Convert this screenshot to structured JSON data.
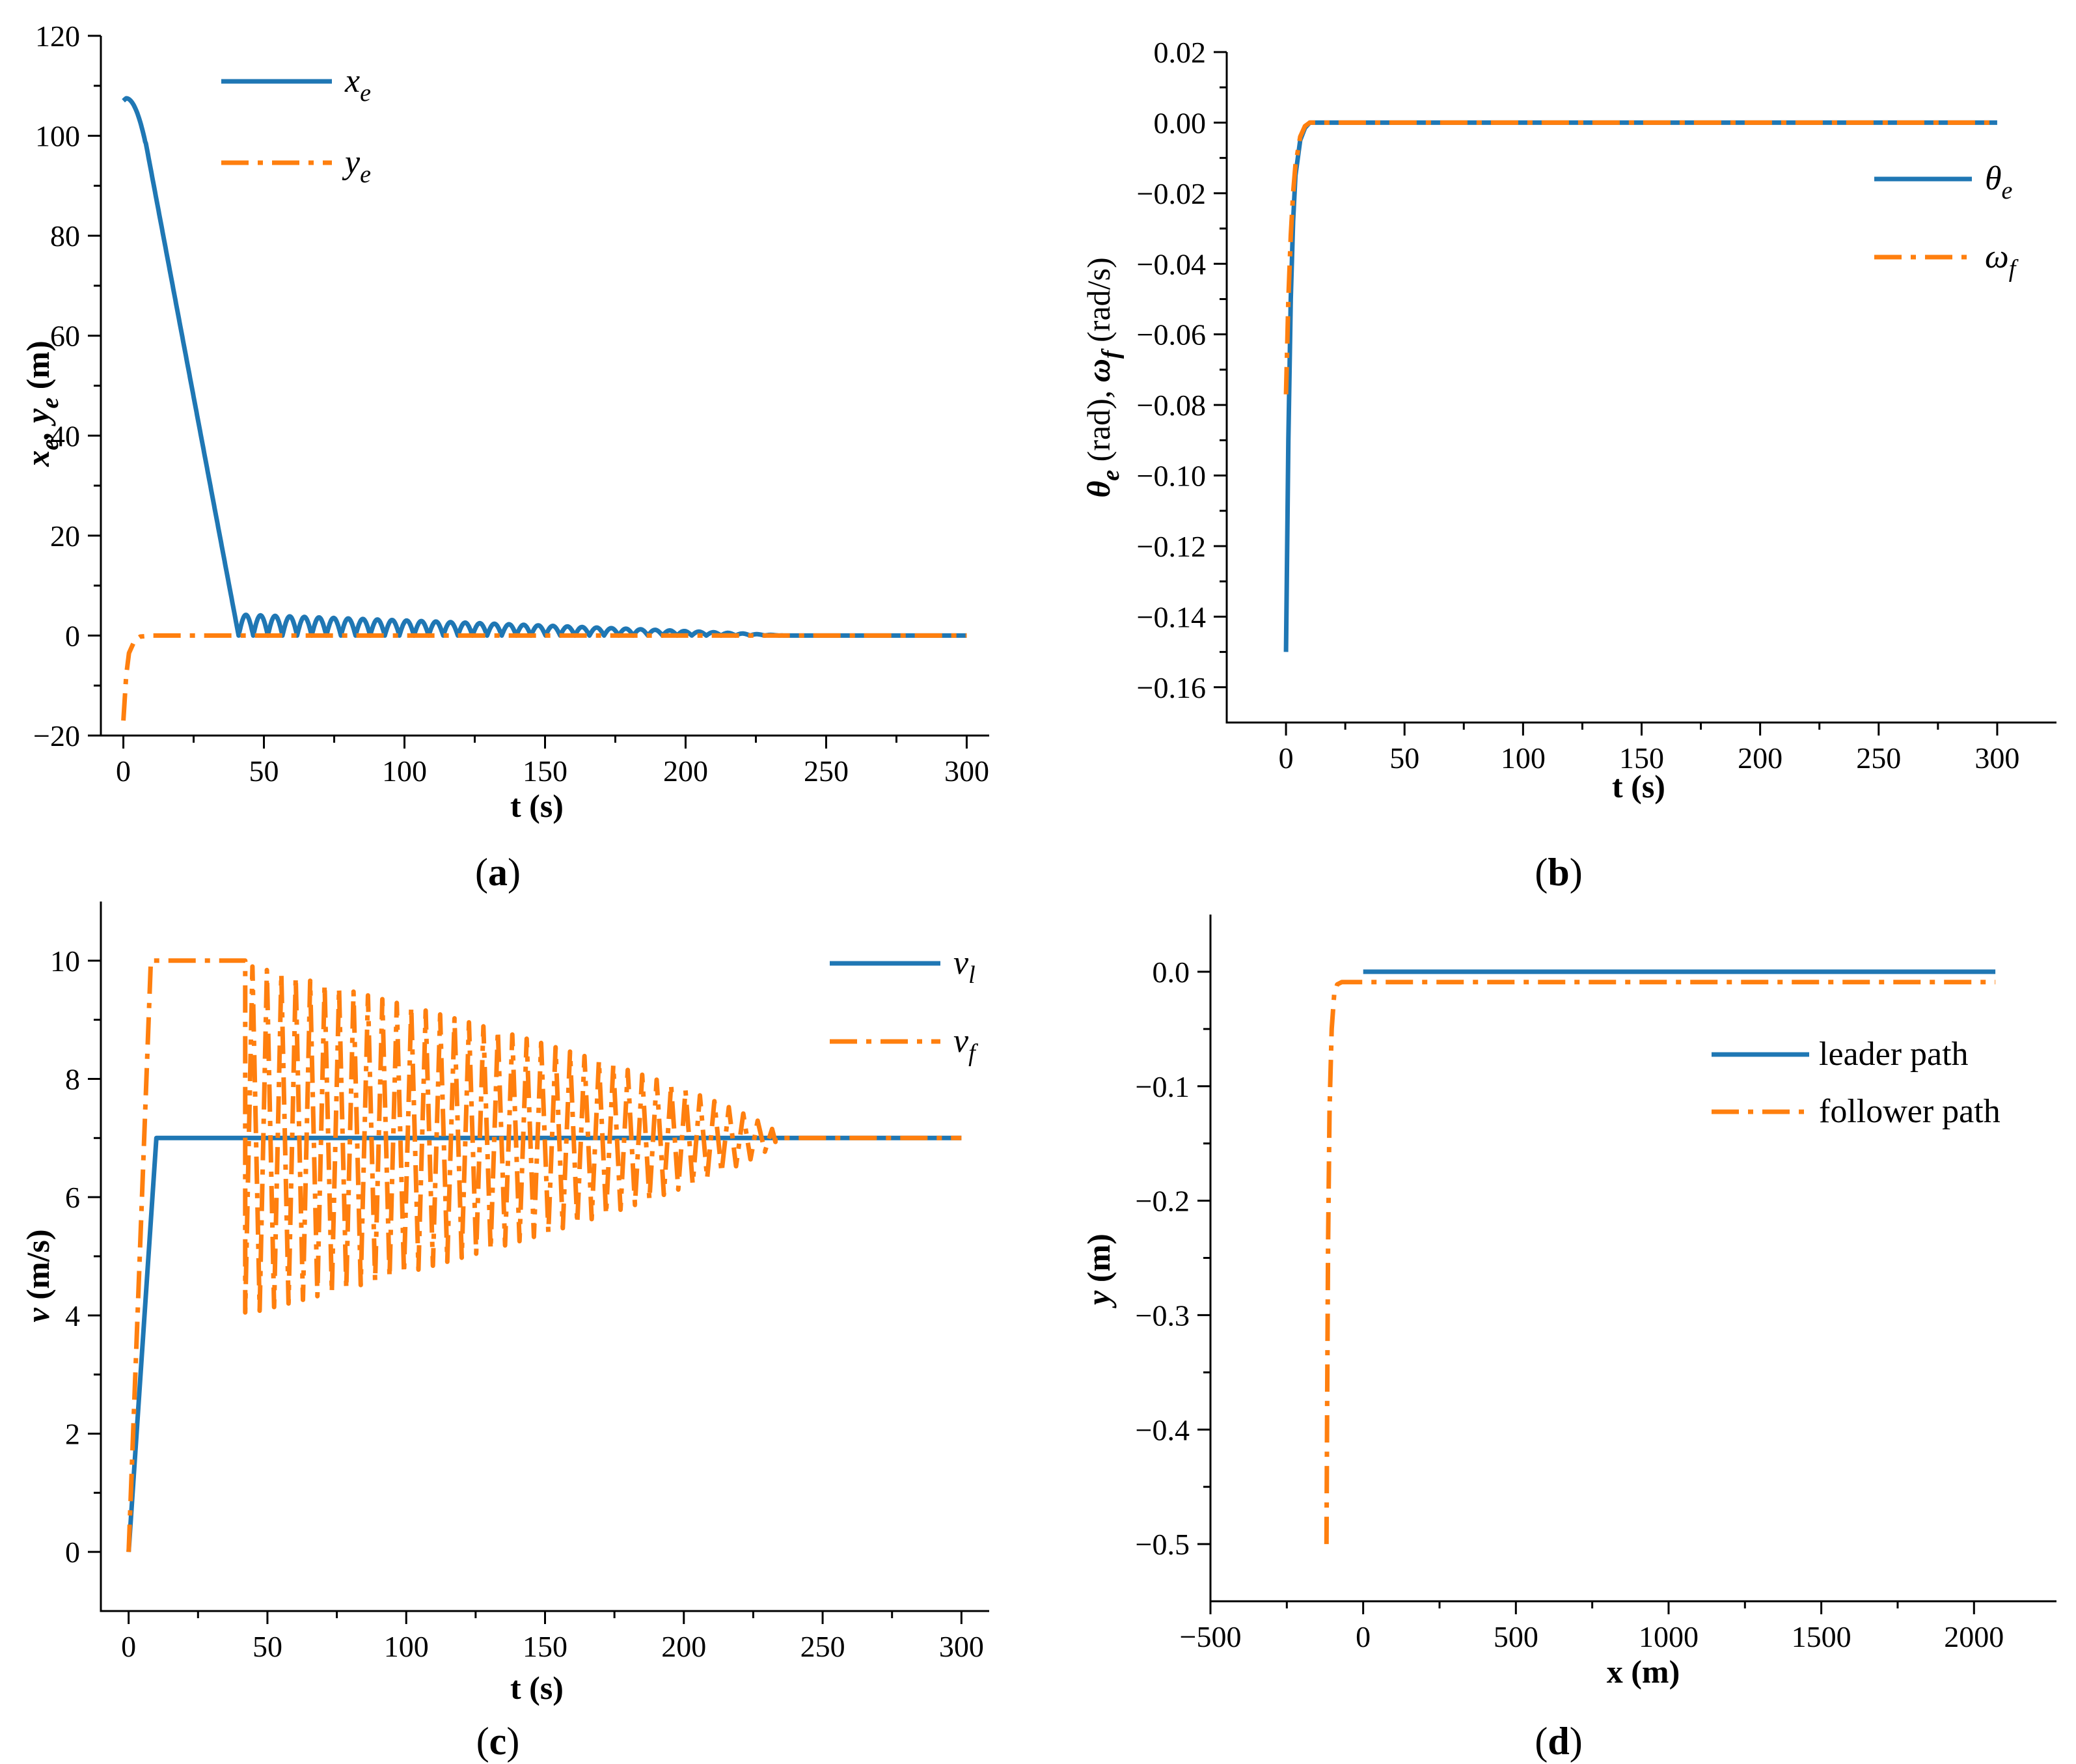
{
  "colors": {
    "blue": "#1f77b4",
    "orange": "#ff7f0e",
    "axis": "#000000"
  },
  "chart_data": [
    {
      "id": "a",
      "type": "line",
      "panel_label": "a",
      "xlabel": "t (s)",
      "ylabel": "x_e, y_e (m)",
      "xlim": [
        -8,
        308
      ],
      "ylim": [
        -20,
        120
      ],
      "xticks": [
        0,
        50,
        100,
        150,
        200,
        250,
        300
      ],
      "yticks": [
        -20,
        0,
        20,
        40,
        60,
        80,
        100,
        120
      ],
      "ytick_labels": [
        "−20",
        "0",
        "20",
        "40",
        "60",
        "80",
        "100",
        "120"
      ],
      "legend_position": "top-left",
      "series": [
        {
          "name": "x_e",
          "legend_main": "x",
          "legend_sub": "e",
          "style": "solid",
          "color": "blue",
          "generator": "decaying_bounce",
          "params": {
            "start_value": 107.5,
            "peak_t": 1,
            "linear_end_t": 41,
            "bounce_period": 5.2,
            "bounce_amp": 4.2,
            "decay_end_t": 235
          },
          "points": [
            [
              0,
              107.0
            ],
            [
              1,
              107.5
            ],
            [
              3,
              106.0
            ],
            [
              6,
              101.0
            ],
            [
              10,
              92.0
            ],
            [
              20,
              66.0
            ],
            [
              30,
              39.0
            ],
            [
              41,
              0.0
            ],
            [
              46,
              4.2
            ],
            [
              100,
              2.9
            ],
            [
              150,
              1.7
            ],
            [
              200,
              0.6
            ],
            [
              235,
              0.0
            ],
            [
              300,
              0.0
            ]
          ]
        },
        {
          "name": "y_e",
          "legend_main": "y",
          "legend_sub": "e",
          "style": "dashdot",
          "color": "orange",
          "points": [
            [
              0,
              -17.0
            ],
            [
              1,
              -8.0
            ],
            [
              2,
              -3.5
            ],
            [
              4,
              -1.0
            ],
            [
              6,
              -0.2
            ],
            [
              10,
              0.0
            ],
            [
              300,
              0.0
            ]
          ]
        }
      ]
    },
    {
      "id": "b",
      "type": "line",
      "panel_label": "b",
      "xlabel": "t (s)",
      "ylabel": "θe (rad), ωf (rad/s)",
      "xlim": [
        -25,
        325
      ],
      "ylim": [
        -0.17,
        0.02
      ],
      "xticks": [
        0,
        50,
        100,
        150,
        200,
        250,
        300
      ],
      "yticks": [
        -0.16,
        -0.14,
        -0.12,
        -0.1,
        -0.08,
        -0.06,
        -0.04,
        -0.02,
        0.0,
        0.02
      ],
      "ytick_labels": [
        "−0.16",
        "−0.14",
        "−0.12",
        "−0.10",
        "−0.08",
        "−0.06",
        "−0.04",
        "−0.02",
        "0.00",
        "0.02"
      ],
      "legend_position": "top-right",
      "series": [
        {
          "name": "θ_e",
          "legend_main": "θ",
          "legend_sub": "e",
          "style": "solid",
          "color": "blue",
          "points": [
            [
              0,
              -0.15
            ],
            [
              1,
              -0.09
            ],
            [
              2,
              -0.05
            ],
            [
              3,
              -0.028
            ],
            [
              4,
              -0.015
            ],
            [
              6,
              -0.005
            ],
            [
              8,
              -0.0015
            ],
            [
              10,
              0.0
            ],
            [
              300,
              0.0
            ]
          ]
        },
        {
          "name": "ω_f",
          "legend_main": "ω",
          "legend_sub": "f",
          "style": "dashdot",
          "color": "orange",
          "points": [
            [
              0,
              -0.077
            ],
            [
              1,
              -0.05
            ],
            [
              2,
              -0.032
            ],
            [
              3,
              -0.02
            ],
            [
              4,
              -0.012
            ],
            [
              6,
              -0.004
            ],
            [
              8,
              -0.001
            ],
            [
              10,
              0.0
            ],
            [
              300,
              0.0
            ]
          ]
        }
      ]
    },
    {
      "id": "c",
      "type": "line",
      "panel_label": "c",
      "xlabel": "t (s)",
      "ylabel": "v (m/s)",
      "xlim": [
        -10,
        310
      ],
      "ylim": [
        -1,
        11
      ],
      "xticks": [
        0,
        50,
        100,
        150,
        200,
        250,
        300
      ],
      "yticks": [
        0,
        2,
        4,
        6,
        8,
        10
      ],
      "ytick_labels": [
        "0",
        "2",
        "4",
        "6",
        "8",
        "10"
      ],
      "legend_position": "top-right",
      "series": [
        {
          "name": "v_l",
          "legend_main": "v",
          "legend_sub": "l",
          "style": "solid",
          "color": "blue",
          "points": [
            [
              0,
              0.0
            ],
            [
              10,
              7.0
            ],
            [
              300,
              7.0
            ]
          ]
        },
        {
          "name": "v_f",
          "legend_main": "v",
          "legend_sub": "f",
          "style": "dashdot",
          "color": "orange",
          "generator": "oscillation_envelope",
          "params": {
            "rise_end_t": 8,
            "plateau_value": 10,
            "plateau_end_t": 42,
            "period": 5.2,
            "center": 7.0,
            "upper_start": 9.9,
            "lower_start": 4.05,
            "converge_t": 233
          },
          "points": [
            [
              0,
              0.0
            ],
            [
              8,
              10.0
            ],
            [
              42,
              10.0
            ],
            [
              42,
              4.05
            ],
            [
              45,
              9.9
            ],
            [
              100,
              9.5
            ],
            [
              150,
              8.9
            ],
            [
              200,
              8.1
            ],
            [
              233,
              7.0
            ],
            [
              300,
              7.0
            ]
          ]
        }
      ]
    },
    {
      "id": "d",
      "type": "line",
      "panel_label": "d",
      "xlabel": "x (m)",
      "ylabel": "y (m)",
      "xlim": [
        -500,
        2270
      ],
      "ylim": [
        -0.55,
        0.05
      ],
      "xticks": [
        -500,
        0,
        500,
        1000,
        1500,
        2000
      ],
      "xtick_labels": [
        "−500",
        "0",
        "500",
        "1000",
        "1500",
        "2000"
      ],
      "yticks": [
        -0.5,
        -0.4,
        -0.3,
        -0.2,
        -0.1,
        0.0
      ],
      "ytick_labels": [
        "−0.5",
        "−0.4",
        "−0.3",
        "−0.2",
        "−0.1",
        "0.0"
      ],
      "legend_position": "center-right",
      "series": [
        {
          "name": "leader path",
          "style": "solid",
          "color": "blue",
          "points": [
            [
              0,
              0.0
            ],
            [
              2070,
              0.0
            ]
          ]
        },
        {
          "name": "follower path",
          "style": "dashdot",
          "color": "orange",
          "points": [
            [
              -120,
              -0.5
            ],
            [
              -118,
              -0.38
            ],
            [
              -115,
              -0.24
            ],
            [
              -110,
              -0.12
            ],
            [
              -103,
              -0.05
            ],
            [
              -95,
              -0.02
            ],
            [
              -85,
              -0.011
            ],
            [
              -70,
              -0.009
            ],
            [
              2070,
              -0.009
            ]
          ]
        }
      ]
    }
  ]
}
